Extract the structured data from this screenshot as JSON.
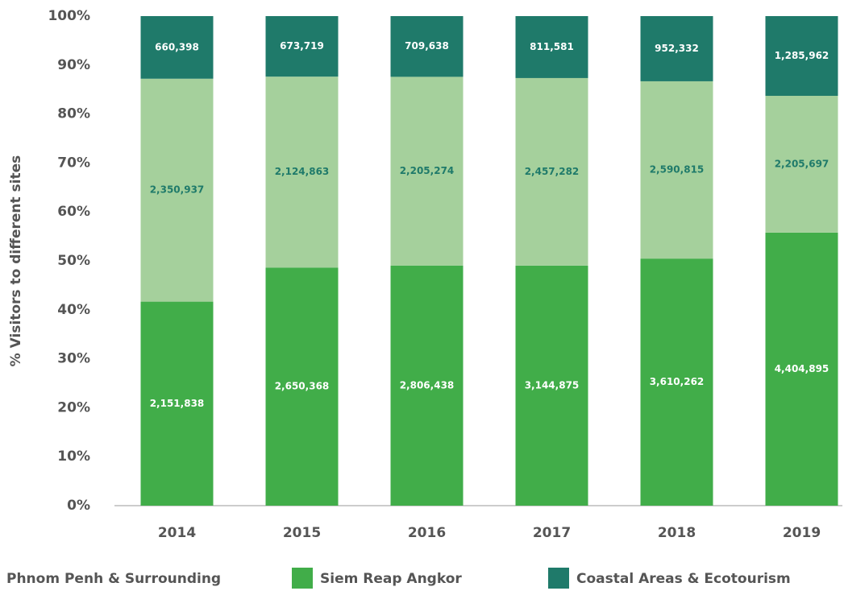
{
  "chart_data": {
    "type": "bar",
    "stacked": "percent",
    "y_axis_label": "% Visitors to different sites",
    "categories": [
      "2014",
      "2015",
      "2016",
      "2017",
      "2018",
      "2019"
    ],
    "series": [
      {
        "name": "Phnom Penh & Surrounding",
        "color": "#a5d09c",
        "label_color": "#1f7a6a",
        "values": [
          2350937,
          2124863,
          2205274,
          2457282,
          2590815,
          2205697
        ],
        "value_labels": [
          "2,350,937",
          "2,124,863",
          "2,205,274",
          "2,457,282",
          "2,590,815",
          "2,205,697"
        ]
      },
      {
        "name": "Siem Reap Angkor",
        "color": "#41ad49",
        "label_color": "#ffffff",
        "values": [
          2151838,
          2650368,
          2806438,
          3144875,
          3610262,
          4404895
        ],
        "value_labels": [
          "2,151,838",
          "2,650,368",
          "2,806,438",
          "3,144,875",
          "3,610,262",
          "4,404,895"
        ]
      },
      {
        "name": "Coastal Areas & Ecotourism",
        "color": "#1f7a6a",
        "label_color": "#ffffff",
        "values": [
          660398,
          673719,
          709638,
          811581,
          952332,
          1285962
        ],
        "value_labels": [
          "660,398",
          "673,719",
          "709,638",
          "811,581",
          "952,332",
          "1,285,962"
        ]
      }
    ],
    "ylim": [
      0,
      100
    ],
    "yticks": [
      {
        "value": 0,
        "label": "0%"
      },
      {
        "value": 10,
        "label": "10%"
      },
      {
        "value": 20,
        "label": "20%"
      },
      {
        "value": 30,
        "label": "30%"
      },
      {
        "value": 40,
        "label": "40%"
      },
      {
        "value": 50,
        "label": "50%"
      },
      {
        "value": 60,
        "label": "60%"
      },
      {
        "value": 70,
        "label": "70%"
      },
      {
        "value": 80,
        "label": "80%"
      },
      {
        "value": 90,
        "label": "90%"
      },
      {
        "value": 100,
        "label": "100%"
      }
    ],
    "grid": false
  }
}
